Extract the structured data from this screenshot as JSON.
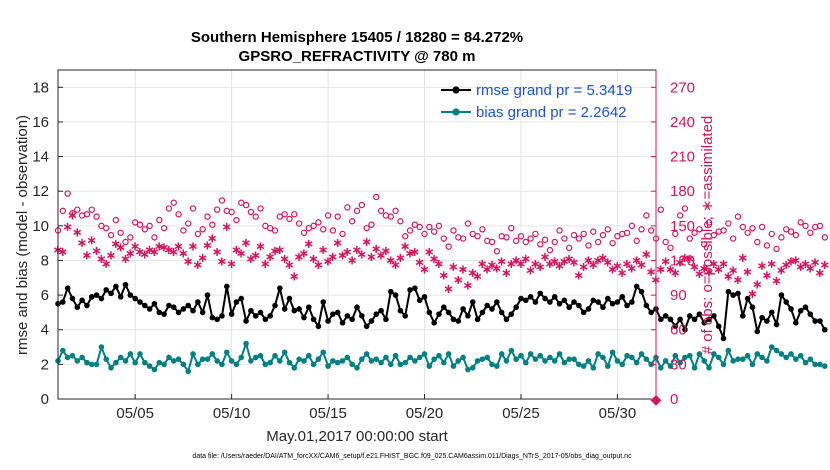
{
  "chart_data": {
    "type": "line",
    "title_line1": "Southern Hemisphere 15405 / 18280 = 84.272%",
    "title_line2": "GPSRO_REFRACTIVITY @ 780 m",
    "xlabel": "May.01,2017 00:00:00 start",
    "ylabel_left": "rmse and bias (model - observation)",
    "ylabel_right": "# of obs: o=possible; ∗=assimilated",
    "footnote": "data file: /Users/raeder/DAI/ATM_forcXX/CAM6_setup/f.e21.FHIST_BGC.f09_025.CAM6assim.011/Diags_NTrS_2017-05/obs_diag_output.nc",
    "x_tick_labels": [
      "05/05",
      "05/10",
      "05/15",
      "05/20",
      "05/25",
      "05/30"
    ],
    "x_tick_days": [
      5,
      10,
      15,
      20,
      25,
      30
    ],
    "x_range_days": [
      1,
      32
    ],
    "ylim_left": [
      0,
      19
    ],
    "y_ticks_left": [
      "0",
      "2",
      "4",
      "6",
      "8",
      "10",
      "12",
      "14",
      "16",
      "18"
    ],
    "ylim_right": [
      0,
      285
    ],
    "y_ticks_right": [
      "0",
      "30",
      "60",
      "90",
      "120",
      "150",
      "180",
      "210",
      "240",
      "270"
    ],
    "grid": true,
    "legend_position": "top-right",
    "colors": {
      "rmse": "#000000",
      "bias": "#008080",
      "counts": "#d6145f",
      "legend_text": "#1f4fd6"
    },
    "legend": [
      "rmse grand pr = 5.3419",
      "bias grand pr = 2.2642"
    ],
    "x_start_day": 1.0,
    "x_step_days": 0.25,
    "series": [
      {
        "name": "rmse grand pr = 5.3419",
        "marker": "filled-circle",
        "values": [
          5.5,
          5.6,
          6.4,
          5.8,
          5.3,
          5.7,
          5.4,
          5.9,
          6.0,
          5.8,
          6.3,
          6.1,
          6.5,
          5.9,
          6.6,
          6.0,
          5.8,
          5.6,
          5.4,
          5.2,
          5.5,
          5.0,
          4.9,
          5.4,
          5.3,
          5.0,
          5.2,
          5.4,
          5.1,
          5.6,
          5.0,
          6.0,
          4.7,
          4.6,
          4.8,
          6.5,
          4.9,
          5.6,
          5.8,
          4.5,
          5.1,
          4.8,
          5.0,
          4.6,
          4.8,
          5.4,
          6.4,
          5.2,
          5.8,
          5.1,
          5.2,
          4.7,
          5.3,
          4.6,
          4.2,
          5.6,
          4.5,
          4.9,
          5.0,
          4.4,
          4.8,
          4.6,
          5.3,
          4.8,
          4.2,
          4.5,
          4.9,
          5.1,
          4.6,
          6.2,
          6.0,
          5.1,
          4.8,
          6.3,
          6.4,
          5.7,
          5.9,
          5.0,
          4.4,
          4.9,
          5.3,
          5.0,
          4.6,
          4.5,
          5.2,
          4.8,
          5.6,
          4.6,
          5.0,
          5.4,
          5.2,
          5.6,
          5.0,
          4.6,
          4.9,
          5.3,
          5.8,
          5.7,
          5.9,
          5.6,
          6.1,
          5.8,
          5.6,
          5.9,
          5.5,
          5.7,
          5.3,
          5.6,
          5.4,
          5.0,
          5.2,
          5.7,
          5.6,
          5.3,
          5.8,
          5.5,
          5.6,
          5.9,
          5.4,
          5.6,
          6.5,
          6.2,
          5.4,
          5.0,
          5.2,
          4.6,
          4.8,
          4.6,
          4.2,
          4.6,
          4.0,
          4.8,
          4.6,
          4.9,
          4.4,
          4.6,
          4.8,
          4.2,
          3.5,
          6.2,
          6.0,
          6.1,
          4.8,
          5.8,
          5.3,
          3.9,
          4.7,
          4.5,
          5.0,
          4.3,
          6.0,
          5.6,
          5.2,
          4.4,
          5.1,
          5.3,
          4.9,
          4.5,
          4.5,
          4.0
        ]
      },
      {
        "name": "bias grand pr = 2.2642",
        "marker": "filled-circle",
        "values": [
          2.2,
          2.8,
          2.4,
          2.5,
          2.2,
          2.4,
          2.1,
          2.0,
          2.0,
          3.0,
          2.3,
          1.8,
          2.1,
          2.4,
          2.2,
          2.6,
          2.1,
          2.6,
          2.1,
          1.9,
          1.7,
          2.1,
          2.0,
          2.4,
          2.2,
          2.3,
          2.0,
          1.6,
          2.6,
          2.0,
          2.3,
          2.3,
          2.6,
          2.2,
          2.0,
          2.7,
          2.2,
          2.0,
          2.4,
          3.2,
          2.2,
          2.4,
          2.5,
          2.0,
          2.1,
          2.5,
          2.2,
          2.7,
          2.1,
          1.8,
          2.3,
          2.2,
          2.5,
          2.0,
          2.3,
          2.7,
          1.9,
          2.2,
          2.1,
          2.2,
          2.4,
          2.0,
          1.8,
          2.3,
          2.6,
          2.2,
          2.3,
          2.1,
          2.4,
          2.0,
          2.5,
          2.0,
          2.1,
          2.4,
          2.2,
          2.4,
          2.6,
          1.9,
          2.3,
          2.5,
          2.1,
          2.6,
          1.9,
          2.2,
          2.4,
          1.7,
          1.8,
          2.2,
          2.3,
          2.4,
          2.0,
          1.9,
          2.6,
          2.2,
          2.8,
          2.3,
          2.5,
          2.1,
          2.6,
          2.3,
          2.5,
          2.2,
          2.4,
          2.2,
          2.6,
          2.1,
          2.3,
          2.3,
          2.0,
          1.9,
          2.2,
          1.8,
          2.6,
          2.4,
          1.9,
          2.7,
          2.2,
          2.0,
          2.5,
          2.4,
          2.1,
          2.6,
          2.3,
          2.0,
          2.4,
          1.8,
          2.2,
          1.9,
          2.5,
          2.1,
          2.4,
          2.5,
          1.8,
          2.6,
          2.2,
          1.8,
          2.6,
          2.4,
          2.0,
          2.8,
          2.2,
          2.3,
          2.3,
          2.5,
          2.0,
          2.6,
          2.4,
          2.2,
          3.0,
          2.8,
          2.6,
          2.4,
          2.6,
          2.3,
          2.5,
          2.1,
          2.3,
          2.0,
          2.0,
          1.9
        ]
      }
    ],
    "obs_counts": {
      "x_start_day": 1.0,
      "x_step_days": 0.25,
      "possible": [
        146,
        163,
        178,
        161,
        164,
        159,
        160,
        164,
        158,
        150,
        148,
        142,
        155,
        144,
        136,
        140,
        153,
        151,
        147,
        150,
        140,
        155,
        148,
        165,
        170,
        160,
        146,
        152,
        165,
        143,
        147,
        158,
        151,
        164,
        172,
        163,
        162,
        155,
        170,
        168,
        162,
        158,
        165,
        150,
        148,
        146,
        158,
        160,
        156,
        160,
        152,
        144,
        148,
        150,
        153,
        147,
        159,
        146,
        158,
        143,
        166,
        154,
        163,
        168,
        148,
        151,
        175,
        163,
        159,
        158,
        163,
        154,
        141,
        146,
        151,
        149,
        143,
        149,
        145,
        150,
        139,
        132,
        146,
        140,
        139,
        152,
        143,
        141,
        147,
        137,
        136,
        128,
        141,
        140,
        148,
        137,
        141,
        136,
        139,
        143,
        134,
        138,
        129,
        136,
        146,
        139,
        131,
        142,
        139,
        143,
        133,
        145,
        136,
        142,
        147,
        135,
        141,
        143,
        144,
        150,
        137,
        147,
        159,
        146,
        139,
        164,
        136,
        131,
        143,
        159,
        165,
        139,
        144,
        147,
        134,
        153,
        142,
        145,
        146,
        152,
        139,
        158,
        149,
        144,
        148,
        136,
        149,
        133,
        143,
        130,
        140,
        147,
        145,
        142,
        153,
        150,
        144,
        149,
        150,
        140
      ],
      "assimilated": [
        130,
        128,
        150,
        160,
        145,
        136,
        125,
        138,
        129,
        122,
        118,
        125,
        135,
        132,
        122,
        127,
        133,
        128,
        126,
        130,
        128,
        133,
        132,
        130,
        128,
        133,
        127,
        120,
        133,
        117,
        123,
        134,
        140,
        128,
        120,
        150,
        118,
        130,
        127,
        136,
        122,
        125,
        133,
        118,
        124,
        129,
        130,
        122,
        117,
        107,
        124,
        127,
        135,
        122,
        117,
        130,
        120,
        124,
        136,
        125,
        128,
        121,
        130,
        126,
        137,
        124,
        131,
        125,
        129,
        121,
        117,
        123,
        133,
        127,
        128,
        119,
        113,
        128,
        122,
        118,
        108,
        96,
        115,
        104,
        113,
        99,
        110,
        107,
        118,
        113,
        117,
        114,
        120,
        110,
        118,
        121,
        118,
        122,
        112,
        118,
        115,
        124,
        118,
        120,
        116,
        120,
        122,
        119,
        108,
        115,
        121,
        117,
        121,
        123,
        119,
        113,
        116,
        110,
        118,
        114,
        121,
        117,
        126,
        111,
        104,
        113,
        120,
        113,
        110,
        119,
        123,
        122,
        115,
        109,
        114,
        111,
        118,
        113,
        118,
        107,
        112,
        104,
        123,
        111,
        92,
        100,
        116,
        108,
        118,
        103,
        112,
        117,
        120,
        121,
        115,
        118,
        114,
        119,
        110,
        117
      ]
    }
  }
}
